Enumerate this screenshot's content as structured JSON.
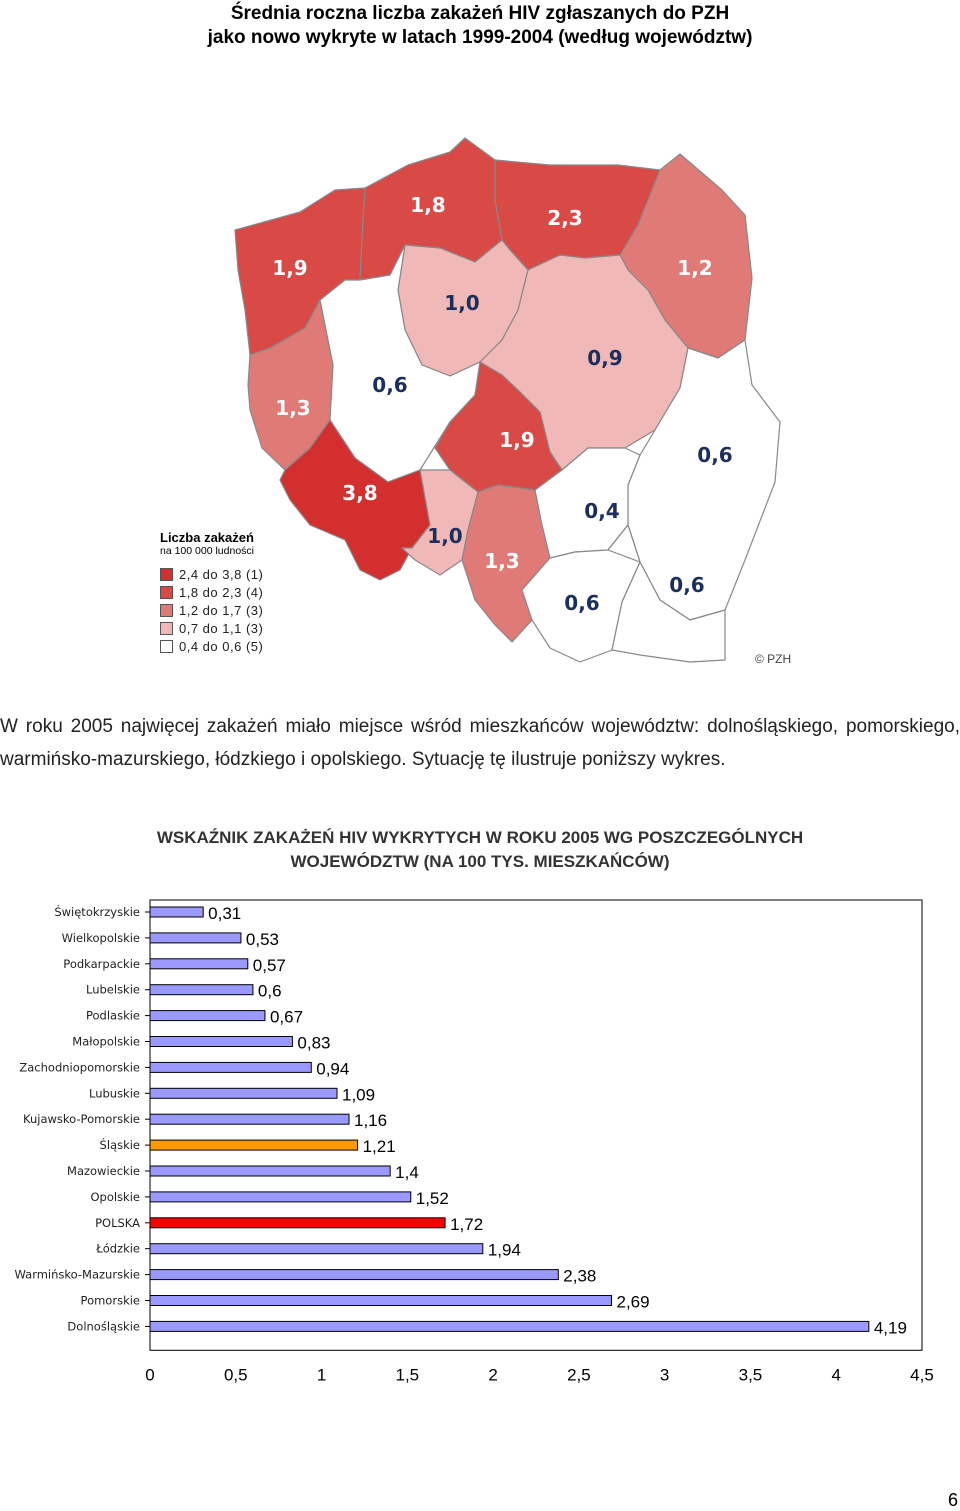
{
  "title": {
    "line1": "Średnia roczna liczba zakażeń HIV zgłaszanych do PZH",
    "line2": "jako nowo wykryte w latach 1999-2004 (według województw)"
  },
  "map": {
    "regions": [
      {
        "id": "zachodniopomorskie",
        "label": "1,9",
        "color": "#d94a47"
      },
      {
        "id": "pomorskie",
        "label": "1,8",
        "color": "#d94a47"
      },
      {
        "id": "warminsko-mazurskie",
        "label": "2,3",
        "color": "#d94a47"
      },
      {
        "id": "podlaskie",
        "label": "1,2",
        "color": "#e07a76"
      },
      {
        "id": "kujawsko-pomorskie",
        "label": "1,0",
        "color": "#f0b8b6"
      },
      {
        "id": "mazowieckie",
        "label": "0,9",
        "color": "#f0b8b6"
      },
      {
        "id": "lubuskie",
        "label": "1,3",
        "color": "#e07a76"
      },
      {
        "id": "wielkopolskie",
        "label": "0,6",
        "color": "#ffffff"
      },
      {
        "id": "lodzkie",
        "label": "1,9",
        "color": "#d94a47"
      },
      {
        "id": "lubelskie",
        "label": "0,6",
        "color": "#ffffff"
      },
      {
        "id": "dolnoslaskie",
        "label": "3,8",
        "color": "#d42f2f"
      },
      {
        "id": "opolskie",
        "label": "1,0",
        "color": "#f0b8b6"
      },
      {
        "id": "slaskie",
        "label": "1,3",
        "color": "#e07a76"
      },
      {
        "id": "swietokrzyskie",
        "label": "0,4",
        "color": "#ffffff"
      },
      {
        "id": "malopolskie",
        "label": "0,6",
        "color": "#ffffff"
      },
      {
        "id": "podkarpackie",
        "label": "0,6",
        "color": "#ffffff"
      }
    ],
    "legend": {
      "title": "Liczba zakażeń",
      "subtitle": "na 100 000 ludności",
      "items": [
        {
          "label": "2,4 do 3,8  (1)",
          "color": "#d42f2f"
        },
        {
          "label": "1,8 do 2,3  (4)",
          "color": "#d94a47"
        },
        {
          "label": "1,2 do 1,7  (3)",
          "color": "#e07a76"
        },
        {
          "label": "0,7 do 1,1  (3)",
          "color": "#f0b8b6"
        },
        {
          "label": "0,4 do 0,6  (5)",
          "color": "#ffffff"
        }
      ]
    },
    "copyright": "© PZH"
  },
  "paragraph": "W roku 2005 najwięcej zakażeń miało miejsce wśród mieszkańców województw: dolnośląskiego, pomorskiego, warmińsko-mazurskiego, łódzkiego i opolskiego. Sytuację tę ilustruje poniższy wykres.",
  "chart_title": {
    "line1": "WSKAŹNIK ZAKAŻEŃ HIV WYKRYTYCH W ROKU 2005 WG POSZCZEGÓLNYCH",
    "line2": "WOJEWÓDZTW (NA 100 TYS. MIESZKAŃCÓW)"
  },
  "chart_data": {
    "type": "bar",
    "orientation": "horizontal",
    "categories": [
      "Świętokrzyskie",
      "Wielkopolskie",
      "Podkarpackie",
      "Lubelskie",
      "Podlaskie",
      "Małopolskie",
      "Zachodniopomorskie",
      "Lubuskie",
      "Kujawsko-Pomorskie",
      "Śląskie",
      "Mazowieckie",
      "Opolskie",
      "POLSKA",
      "Łódzkie",
      "Warmińsko-Mazurskie",
      "Pomorskie",
      "Dolnośląskie"
    ],
    "values": [
      0.31,
      0.53,
      0.57,
      0.6,
      0.67,
      0.83,
      0.94,
      1.09,
      1.16,
      1.21,
      1.4,
      1.52,
      1.72,
      1.94,
      2.38,
      2.69,
      4.19
    ],
    "value_labels": [
      "0,31",
      "0,53",
      "0,57",
      "0,6",
      "0,67",
      "0,83",
      "0,94",
      "1,09",
      "1,16",
      "1,21",
      "1,4",
      "1,52",
      "1,72",
      "1,94",
      "2,38",
      "2,69",
      "4,19"
    ],
    "bar_colors": [
      "#9999ff",
      "#9999ff",
      "#9999ff",
      "#9999ff",
      "#9999ff",
      "#9999ff",
      "#9999ff",
      "#9999ff",
      "#9999ff",
      "#ff9900",
      "#9999ff",
      "#9999ff",
      "#ff0000",
      "#9999ff",
      "#9999ff",
      "#9999ff",
      "#9999ff"
    ],
    "xlim": [
      0,
      4.5
    ],
    "xticks": [
      "0",
      "0,5",
      "1",
      "1,5",
      "2",
      "2,5",
      "3",
      "3,5",
      "4",
      "4,5"
    ],
    "xlabel": "",
    "ylabel": "",
    "grid": false,
    "legend": "none"
  },
  "page_number": "6"
}
